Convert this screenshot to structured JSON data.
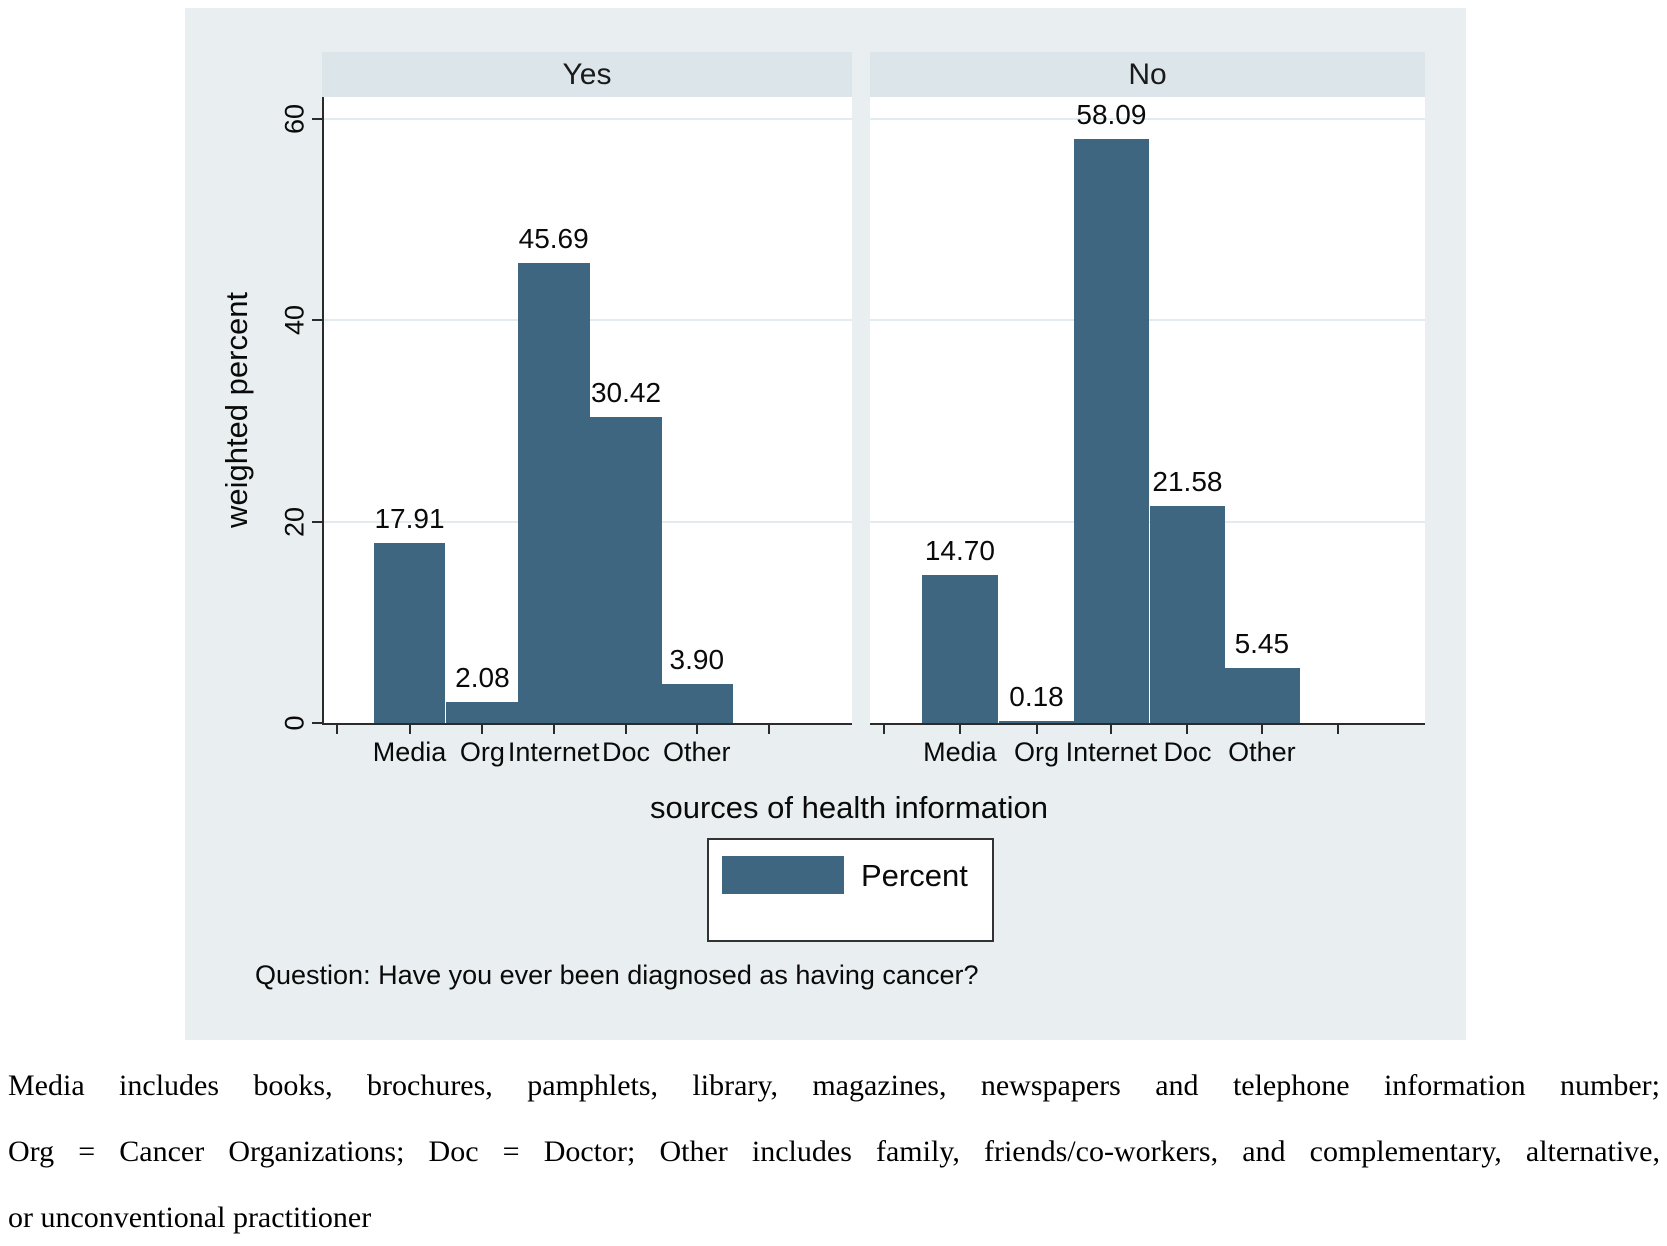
{
  "figure": {
    "y_axis_title": "weighted percent",
    "x_axis_title": "sources of health information",
    "caption": "Question: Have you ever been diagnosed as having cancer?",
    "legend_label": "Percent",
    "y_tick_labels": [
      "0",
      "20",
      "40",
      "60"
    ]
  },
  "chart_data": {
    "type": "bar",
    "categories": [
      "Media",
      "Org",
      "Internet",
      "Doc",
      "Other"
    ],
    "panels": [
      {
        "title": "Yes",
        "values": [
          17.91,
          2.08,
          45.69,
          30.42,
          3.9
        ],
        "labels": [
          "17.91",
          "2.08",
          "45.69",
          "30.42",
          "3.90"
        ]
      },
      {
        "title": "No",
        "values": [
          14.7,
          0.18,
          58.09,
          21.58,
          5.45
        ],
        "labels": [
          "14.70",
          "0.18",
          "58.09",
          "21.58",
          "5.45"
        ]
      }
    ],
    "xlabel": "sources of health information",
    "ylabel": "weighted percent",
    "ylim": [
      0,
      62
    ],
    "yticks": [
      0,
      20,
      40,
      60
    ],
    "grid": true,
    "legend_entries": [
      "Percent"
    ],
    "legend_position": "bottom-center",
    "bar_color": "#3e6681",
    "plot_background": "#ffffff",
    "figure_background": "#e9eff1",
    "panel_header_background": "#dce6ea"
  },
  "footnote": {
    "lines": [
      "Media includes books, brochures, pamphlets, library, magazines, newspapers and telephone information number;",
      "Org = Cancer Organizations; Doc = Doctor; Other includes family, friends/co-workers, and complementary, alternative,",
      "or unconventional practitioner"
    ]
  }
}
